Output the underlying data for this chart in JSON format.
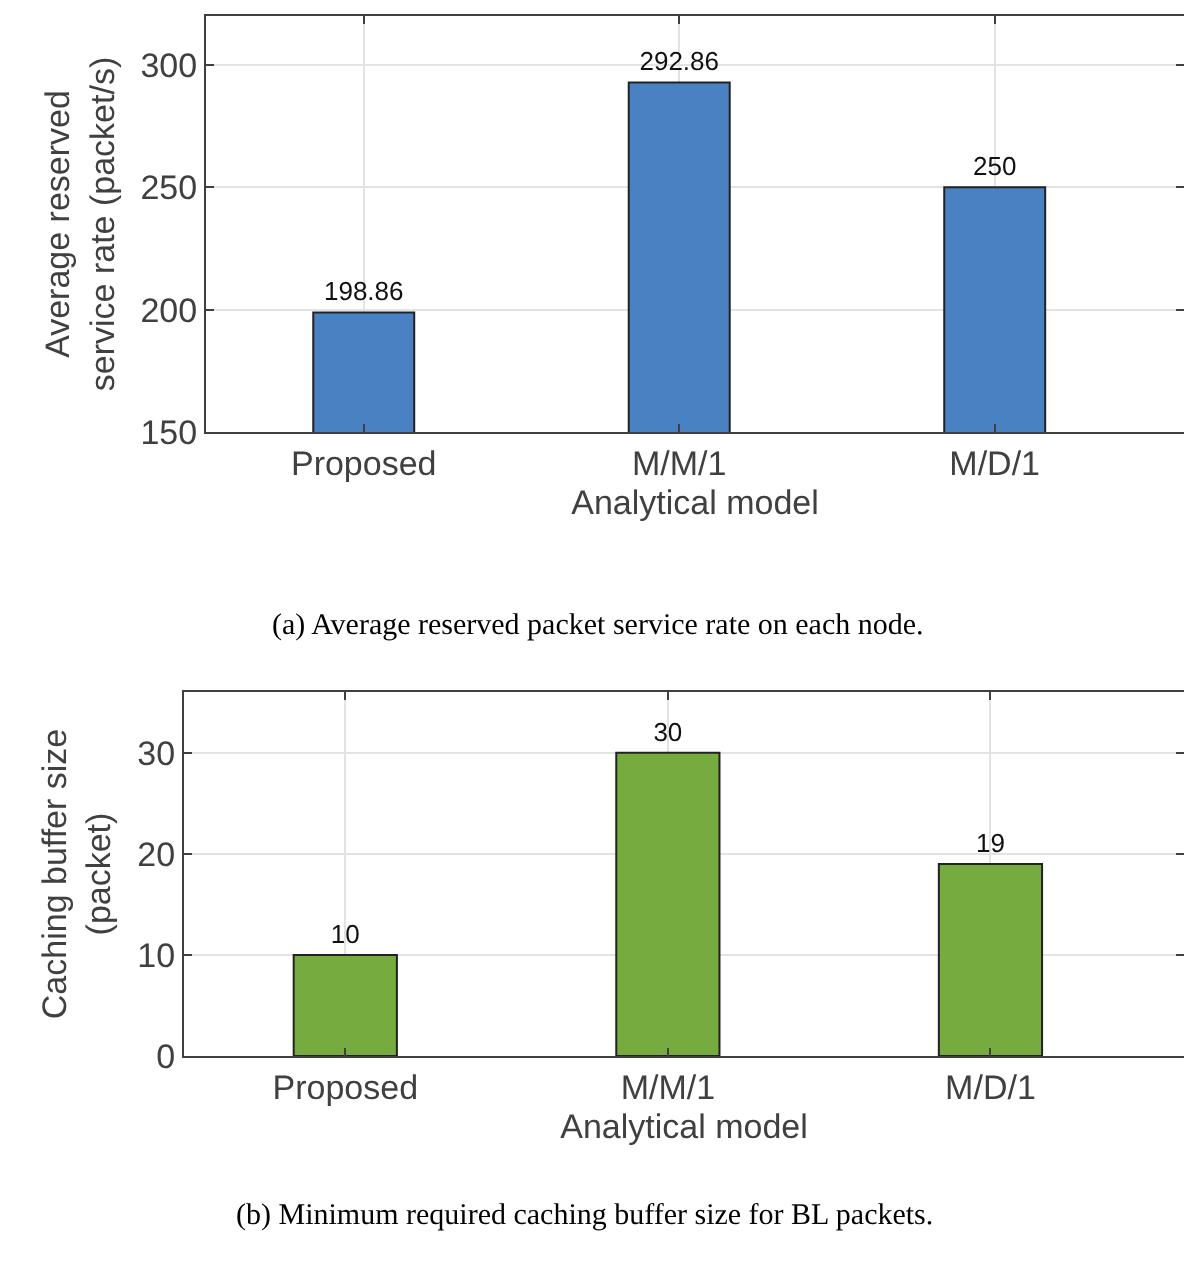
{
  "chart_data": [
    {
      "type": "bar",
      "xlabel": "Analytical model",
      "ylabel": "Average reserved\nservice rate (packet/s)",
      "categories": [
        "Proposed",
        "M/M/1",
        "M/D/1"
      ],
      "values": [
        198.86,
        292.86,
        250
      ],
      "color": "#4a81c3",
      "ylim": [
        150,
        320
      ],
      "yticks": [
        150,
        200,
        250,
        300
      ],
      "grid": true,
      "data_labels": true,
      "annotations": [
        "(a) Average reserved packet service rate on each node."
      ]
    },
    {
      "type": "bar",
      "xlabel": "Analytical model",
      "ylabel": "Caching buffer size\n(packet)",
      "categories": [
        "Proposed",
        "M/M/1",
        "M/D/1"
      ],
      "values": [
        10,
        30,
        19
      ],
      "color": "#76ab3f",
      "ylim": [
        0,
        36
      ],
      "yticks": [
        0,
        10,
        20,
        30
      ],
      "grid": true,
      "data_labels": true,
      "annotations": [
        "(b) Minimum required caching buffer size for BL packets."
      ]
    }
  ]
}
